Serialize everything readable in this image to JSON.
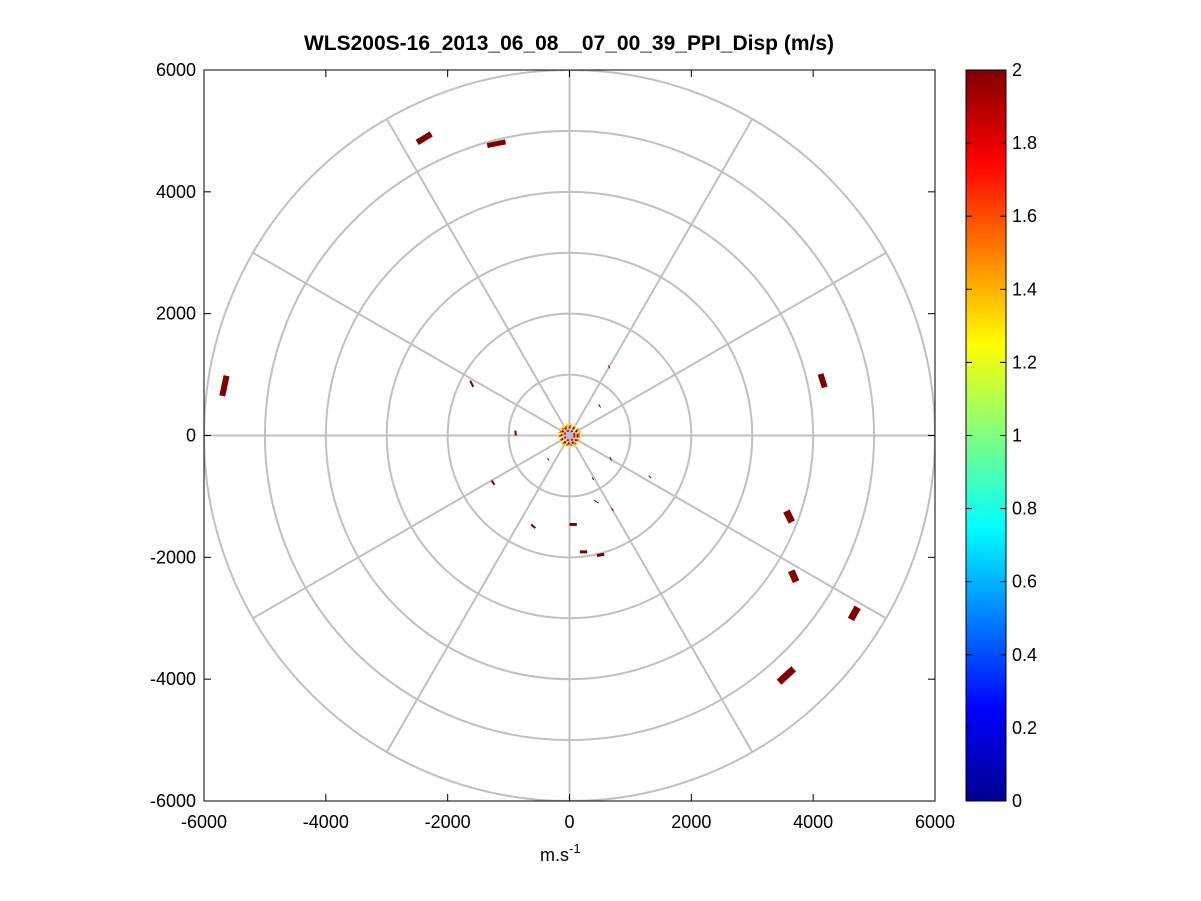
{
  "chart_data": {
    "type": "scatter",
    "title": "WLS200S-16_2013_06_08__07_00_39_PPI_Disp (m/s)",
    "xlabel": "m.s",
    "xlabel_superscript": "-1",
    "ylabel": "",
    "xlim": [
      -6000,
      6000
    ],
    "ylim": [
      -6000,
      6000
    ],
    "xticks": [
      -6000,
      -4000,
      -2000,
      0,
      2000,
      4000,
      6000
    ],
    "yticks": [
      6000,
      4000,
      2000,
      0,
      -2000,
      -4000,
      -6000
    ],
    "x_tick_labels": [
      "-6000",
      "-4000",
      "-2000",
      "0",
      "2000",
      "4000",
      "6000"
    ],
    "y_tick_labels": [
      "6000",
      "4000",
      "2000",
      "0",
      "-2000",
      "-4000",
      "-6000"
    ],
    "polar_grid": {
      "ring_radii": [
        1000,
        2000,
        3000,
        4000,
        5000,
        6000
      ],
      "spoke_angles_deg": [
        0,
        30,
        60,
        90,
        120,
        150,
        180,
        210,
        240,
        270,
        300,
        330
      ]
    },
    "colorbar": {
      "colormap": "jet",
      "range": [
        0,
        2
      ],
      "ticks": [
        0,
        0.2,
        0.4,
        0.6,
        0.8,
        1,
        1.2,
        1.4,
        1.6,
        1.8,
        2
      ],
      "tick_labels": [
        "0",
        "0.2",
        "0.4",
        "0.6",
        "0.8",
        "1",
        "1.2",
        "1.4",
        "1.6",
        "1.8",
        "2"
      ]
    },
    "grid_color": "#c0c0c0",
    "segment_color": "#800000",
    "segments": [
      {
        "x1": -2500,
        "y1": 4810,
        "x2": -2270,
        "y2": 4950,
        "value": 2,
        "width": 6
      },
      {
        "x1": -1350,
        "y1": 4760,
        "x2": -1050,
        "y2": 4820,
        "value": 2,
        "width": 5
      },
      {
        "x1": -5700,
        "y1": 650,
        "x2": -5630,
        "y2": 980,
        "value": 2,
        "width": 6
      },
      {
        "x1": 4120,
        "y1": 1010,
        "x2": 4190,
        "y2": 790,
        "value": 2,
        "width": 6
      },
      {
        "x1": 3560,
        "y1": -1240,
        "x2": 3650,
        "y2": -1420,
        "value": 2,
        "width": 7
      },
      {
        "x1": 3640,
        "y1": -2220,
        "x2": 3720,
        "y2": -2400,
        "value": 2,
        "width": 7
      },
      {
        "x1": 4620,
        "y1": -3020,
        "x2": 4730,
        "y2": -2820,
        "value": 2,
        "width": 7
      },
      {
        "x1": 3440,
        "y1": -4050,
        "x2": 3680,
        "y2": -3830,
        "value": 2,
        "width": 7
      },
      {
        "x1": -1630,
        "y1": 900,
        "x2": -1580,
        "y2": 800,
        "value": 2,
        "width": 2
      },
      {
        "x1": -890,
        "y1": 80,
        "x2": -880,
        "y2": 0,
        "value": 2,
        "width": 2
      },
      {
        "x1": -1280,
        "y1": -740,
        "x2": -1230,
        "y2": -810,
        "value": 2,
        "width": 2
      },
      {
        "x1": -630,
        "y1": -1460,
        "x2": -560,
        "y2": -1520,
        "value": 2,
        "width": 2
      },
      {
        "x1": 0,
        "y1": -1460,
        "x2": 120,
        "y2": -1460,
        "value": 2,
        "width": 3
      },
      {
        "x1": 170,
        "y1": -1910,
        "x2": 290,
        "y2": -1910,
        "value": 2,
        "width": 3
      },
      {
        "x1": 450,
        "y1": -1970,
        "x2": 570,
        "y2": -1950,
        "value": 2,
        "width": 3
      },
      {
        "x1": 640,
        "y1": 1150,
        "x2": 660,
        "y2": 1100,
        "value": 2,
        "width": 1
      },
      {
        "x1": 480,
        "y1": 510,
        "x2": 510,
        "y2": 460,
        "value": 2,
        "width": 1
      },
      {
        "x1": 660,
        "y1": -350,
        "x2": 690,
        "y2": -410,
        "value": 2,
        "width": 1
      },
      {
        "x1": 400,
        "y1": -1060,
        "x2": 480,
        "y2": -1110,
        "value": 2,
        "width": 1
      },
      {
        "x1": 690,
        "y1": -1190,
        "x2": 720,
        "y2": -1240,
        "value": 2,
        "width": 1
      },
      {
        "x1": 1300,
        "y1": -660,
        "x2": 1340,
        "y2": -700,
        "value": 2,
        "width": 1
      },
      {
        "x1": -360,
        "y1": -370,
        "x2": -340,
        "y2": -410,
        "value": 2,
        "width": 1
      },
      {
        "x1": 370,
        "y1": -690,
        "x2": 400,
        "y2": -730,
        "value": 2,
        "width": 1
      }
    ],
    "center_cluster": {
      "x": 0,
      "y": 0,
      "radius": 180,
      "values": [
        1.3,
        1.6,
        2.0,
        1.4,
        1.8
      ]
    }
  }
}
